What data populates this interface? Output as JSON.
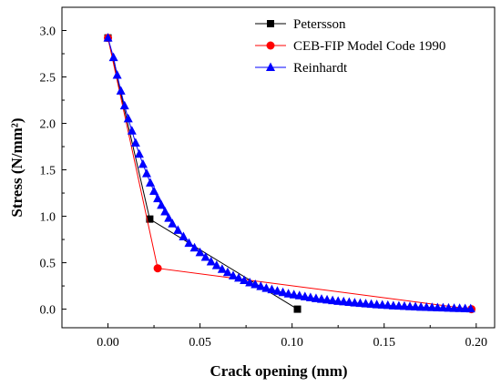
{
  "chart_data": {
    "type": "line",
    "title": "",
    "xlabel": "Crack opening (mm)",
    "ylabel": "Stress (N/mm²)",
    "xlim": [
      -0.025,
      0.21
    ],
    "ylim": [
      -0.2,
      3.25
    ],
    "x_ticks": [
      "0.00",
      "0.05",
      "0.10",
      "0.15",
      "0.20"
    ],
    "y_ticks": [
      "0.0",
      "0.5",
      "1.0",
      "1.5",
      "2.0",
      "2.5",
      "3.0"
    ],
    "grid": false,
    "legend_position": "top-right",
    "series": [
      {
        "name": "Petersson",
        "color": "#000000",
        "marker": "square",
        "x": [
          0,
          0.0227,
          0.1029
        ],
        "y": [
          2.92,
          0.97,
          0
        ]
      },
      {
        "name": "CEB-FIP Model Code 1990",
        "color": "#ff0000",
        "marker": "circle",
        "x": [
          0,
          0.027,
          0.1974
        ],
        "y": [
          2.92,
          0.44,
          0
        ]
      },
      {
        "name": "Reinhardt",
        "color": "#0000ff",
        "marker": "triangle",
        "x": [
          0,
          0.003,
          0.005,
          0.007,
          0.009,
          0.011,
          0.013,
          0.015,
          0.017,
          0.019,
          0.021,
          0.023,
          0.025,
          0.027,
          0.029,
          0.031,
          0.033,
          0.035,
          0.038,
          0.041,
          0.044,
          0.047,
          0.05,
          0.053,
          0.056,
          0.059,
          0.062,
          0.065,
          0.068,
          0.071,
          0.074,
          0.077,
          0.08,
          0.083,
          0.086,
          0.089,
          0.092,
          0.095,
          0.098,
          0.101,
          0.104,
          0.107,
          0.11,
          0.113,
          0.116,
          0.119,
          0.122,
          0.125,
          0.128,
          0.131,
          0.134,
          0.137,
          0.14,
          0.143,
          0.146,
          0.149,
          0.152,
          0.155,
          0.158,
          0.161,
          0.164,
          0.167,
          0.17,
          0.173,
          0.176,
          0.179,
          0.182,
          0.185,
          0.188,
          0.191,
          0.194,
          0.197
        ],
        "y": [
          2.92,
          2.71,
          2.52,
          2.35,
          2.19,
          2.05,
          1.92,
          1.79,
          1.67,
          1.56,
          1.46,
          1.36,
          1.27,
          1.19,
          1.12,
          1.05,
          0.98,
          0.92,
          0.85,
          0.78,
          0.71,
          0.66,
          0.61,
          0.56,
          0.51,
          0.47,
          0.43,
          0.395,
          0.36,
          0.335,
          0.31,
          0.285,
          0.265,
          0.245,
          0.225,
          0.21,
          0.195,
          0.18,
          0.165,
          0.155,
          0.145,
          0.135,
          0.125,
          0.115,
          0.107,
          0.1,
          0.093,
          0.086,
          0.08,
          0.074,
          0.068,
          0.063,
          0.058,
          0.053,
          0.049,
          0.045,
          0.041,
          0.037,
          0.034,
          0.031,
          0.028,
          0.025,
          0.022,
          0.02,
          0.018,
          0.016,
          0.014,
          0.012,
          0.01,
          0.008,
          0.006,
          0.004
        ]
      }
    ]
  }
}
